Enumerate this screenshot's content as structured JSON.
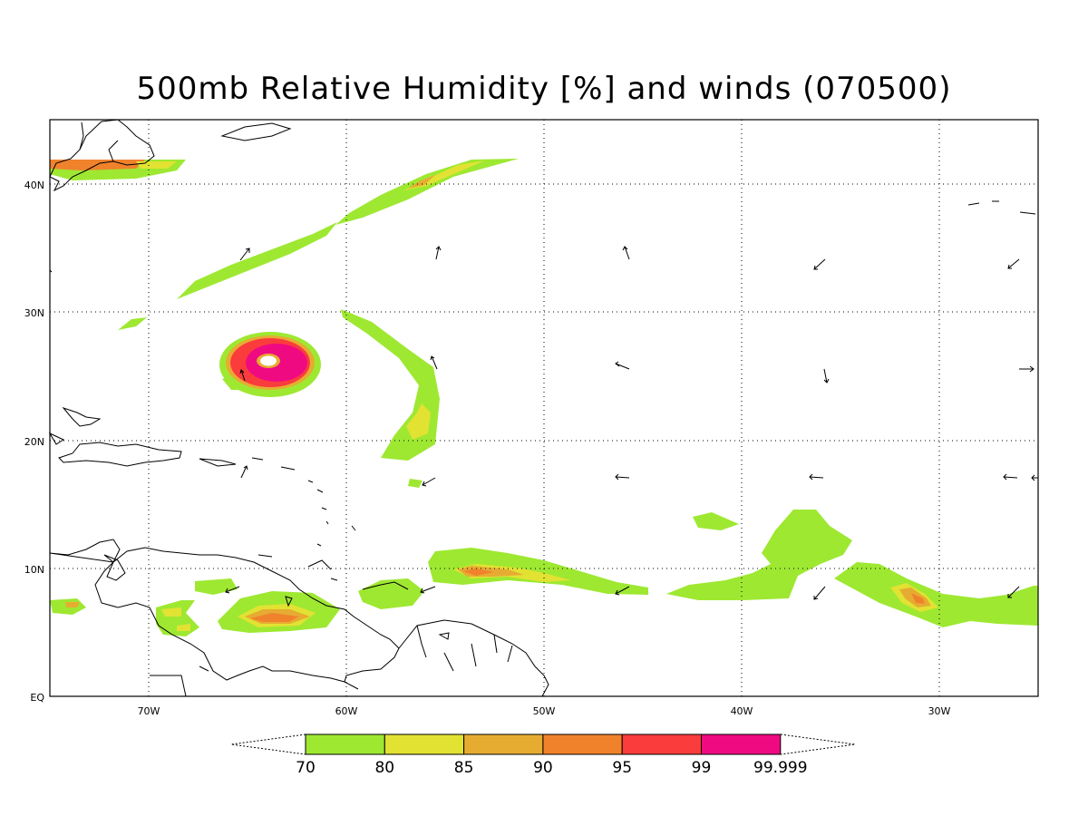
{
  "map": {
    "title": "500mb Relative Humidity [%] and winds (070500)",
    "lat_labels": [
      "40N",
      "30N",
      "20N",
      "10N",
      "EQ"
    ],
    "lon_labels": [
      "70W",
      "60W",
      "50W",
      "40W",
      "30W"
    ]
  },
  "legend": {
    "levels": [
      "70",
      "80",
      "85",
      "90",
      "95",
      "99",
      "99.999"
    ],
    "colors": [
      "#9ee832",
      "#e2e232",
      "#e6ac32",
      "#f0822c",
      "#fa3c3c",
      "#f00a82"
    ]
  },
  "colors": {
    "rh_70": "#9ee832",
    "rh_80": "#e2e232",
    "rh_85": "#e6ac32",
    "rh_90": "#f0822c",
    "rh_95": "#fa3c3c",
    "rh_99": "#f00a82"
  }
}
